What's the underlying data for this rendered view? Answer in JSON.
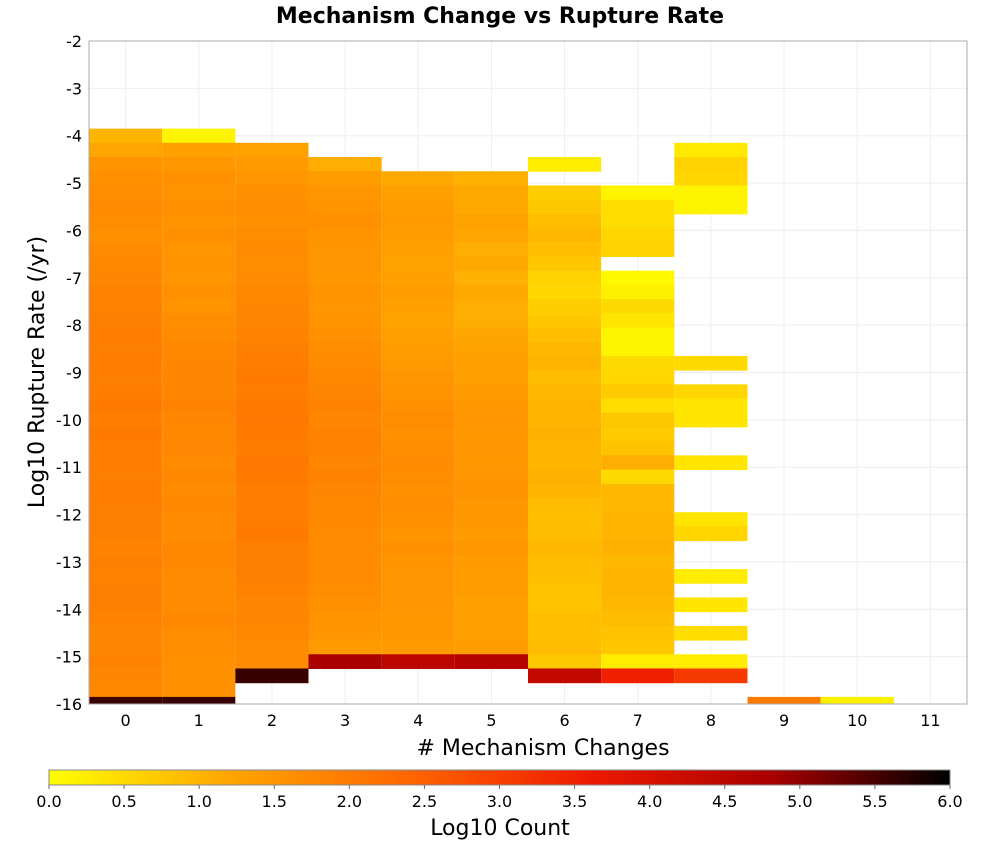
{
  "chart_data": {
    "type": "heatmap",
    "title": "Mechanism Change vs Rupture Rate",
    "xlabel": "# Mechanism Changes",
    "ylabel": "Log10 Rupture Rate (/yr)",
    "colorbar_label": "Log10 Count",
    "x_categories": [
      "0",
      "1",
      "2",
      "3",
      "4",
      "5",
      "6",
      "7",
      "8",
      "9",
      "10",
      "11"
    ],
    "ylim": [
      -16,
      -2
    ],
    "y_ticks": [
      "-2",
      "-3",
      "-4",
      "-5",
      "-6",
      "-7",
      "-8",
      "-9",
      "-10",
      "-11",
      "-12",
      "-13",
      "-14",
      "-15",
      "-16"
    ],
    "y_bin_width": 0.3,
    "colorbar_range": [
      0,
      6
    ],
    "colorbar_ticks": [
      "0.0",
      "0.5",
      "1.0",
      "1.5",
      "2.0",
      "2.5",
      "3.0",
      "3.5",
      "4.0",
      "4.5",
      "5.0",
      "5.5",
      "6.0"
    ],
    "colormap": [
      "#ffff00",
      "#ffa500",
      "#ff6600",
      "#ee1a00",
      "#aa0000",
      "#000000"
    ],
    "grid": true,
    "columns": [
      {
        "x": 0,
        "y_top": -3.85,
        "values": [
          1.0,
          1.2,
          1.55,
          1.6,
          1.65,
          1.7,
          1.65,
          1.6,
          1.7,
          1.75,
          1.8,
          1.85,
          1.85,
          1.9,
          1.95,
          1.9,
          1.95,
          1.9,
          1.95,
          2.0,
          1.95,
          2.0,
          1.9,
          1.95,
          1.9,
          1.95,
          1.9,
          1.9,
          1.9,
          1.85,
          1.9,
          1.85,
          1.9,
          1.9,
          1.85,
          1.8,
          1.8,
          1.85,
          1.8,
          1.75,
          5.6
        ]
      },
      {
        "x": 1,
        "y_top": -3.85,
        "values": [
          0.15,
          1.3,
          1.45,
          1.6,
          1.55,
          1.6,
          1.55,
          1.6,
          1.5,
          1.55,
          1.5,
          1.6,
          1.55,
          1.65,
          1.7,
          1.75,
          1.8,
          1.8,
          1.8,
          1.85,
          1.8,
          1.75,
          1.8,
          1.7,
          1.75,
          1.7,
          1.75,
          1.7,
          1.7,
          1.75,
          1.75,
          1.7,
          1.7,
          1.7,
          1.75,
          1.65,
          1.65,
          1.6,
          1.6,
          1.6,
          5.6
        ]
      },
      {
        "x": 2,
        "y_top": -4.15,
        "values": [
          1.25,
          1.4,
          1.5,
          1.6,
          1.65,
          1.6,
          1.65,
          1.7,
          1.65,
          1.7,
          1.75,
          1.8,
          1.8,
          1.85,
          1.9,
          1.95,
          2.0,
          1.95,
          2.0,
          2.05,
          2.0,
          1.95,
          2.05,
          2.0,
          1.95,
          1.95,
          1.95,
          2.0,
          1.9,
          1.9,
          1.9,
          1.85,
          1.8,
          1.8,
          1.75,
          1.7,
          1.7,
          5.6
        ]
      },
      {
        "x": 3,
        "y_top": -4.45,
        "values": [
          1.1,
          1.35,
          1.5,
          1.55,
          1.6,
          1.55,
          1.5,
          1.5,
          1.45,
          1.55,
          1.5,
          1.55,
          1.6,
          1.65,
          1.7,
          1.75,
          1.8,
          1.85,
          1.8,
          1.85,
          1.85,
          1.8,
          1.85,
          1.8,
          1.75,
          1.75,
          1.7,
          1.7,
          1.7,
          1.7,
          1.65,
          1.6,
          1.55,
          1.5,
          1.4,
          4.8
        ]
      },
      {
        "x": 4,
        "y_top": -4.75,
        "values": [
          1.15,
          1.3,
          1.35,
          1.4,
          1.35,
          1.3,
          1.25,
          1.3,
          1.35,
          1.3,
          1.25,
          1.3,
          1.35,
          1.4,
          1.5,
          1.55,
          1.6,
          1.65,
          1.6,
          1.65,
          1.7,
          1.65,
          1.6,
          1.65,
          1.6,
          1.55,
          1.6,
          1.55,
          1.5,
          1.5,
          1.5,
          1.45,
          1.45,
          1.4,
          4.5
        ]
      },
      {
        "x": 5,
        "y_top": -4.75,
        "values": [
          1.05,
          1.15,
          1.15,
          1.25,
          1.2,
          1.1,
          1.15,
          1.05,
          1.15,
          1.1,
          1.1,
          1.2,
          1.25,
          1.3,
          1.3,
          1.4,
          1.45,
          1.5,
          1.45,
          1.5,
          1.45,
          1.5,
          1.55,
          1.45,
          1.45,
          1.4,
          1.45,
          1.4,
          1.35,
          1.35,
          1.3,
          1.3,
          1.3,
          1.35,
          4.6
        ]
      },
      {
        "x": 6,
        "y_top": -4.45,
        "values": [
          0.25,
          null,
          0.65,
          0.75,
          0.85,
          0.95,
          0.85,
          0.75,
          0.6,
          0.55,
          0.65,
          0.75,
          0.85,
          0.95,
          1.0,
          0.9,
          0.95,
          1.0,
          1.0,
          1.05,
          1.0,
          1.0,
          1.05,
          1.0,
          0.9,
          0.85,
          0.9,
          0.95,
          0.9,
          0.85,
          0.8,
          0.8,
          0.85,
          0.85,
          0.9,
          0.75,
          4.4
        ]
      },
      {
        "x": 7,
        "y_top": -5.05,
        "values": [
          0.15,
          0.45,
          0.45,
          0.55,
          0.6,
          null,
          0.1,
          0.2,
          0.5,
          0.35,
          0.15,
          0.15,
          0.5,
          0.55,
          0.7,
          0.45,
          0.75,
          0.7,
          0.8,
          1.1,
          0.5,
          0.95,
          0.95,
          1.0,
          1.0,
          1.05,
          0.95,
          1.0,
          1.0,
          0.95,
          0.9,
          0.8,
          0.75,
          0.25,
          3.5
        ]
      },
      {
        "x": 8,
        "y_top": -4.15,
        "values": [
          0.3,
          0.6,
          0.55,
          0.15,
          0.15,
          null,
          null,
          null,
          null,
          null,
          null,
          null,
          null,
          null,
          null,
          0.5,
          null,
          0.55,
          0.35,
          0.35,
          null,
          null,
          0.35,
          null,
          null,
          null,
          0.35,
          0.55,
          null,
          null,
          0.25,
          null,
          0.35,
          null,
          0.45,
          null,
          0.25,
          3.1
        ]
      },
      {
        "x": 9,
        "y_top": -15.85,
        "values": [
          2.0
        ]
      },
      {
        "x": 10,
        "y_top": -15.85,
        "values": [
          0.2
        ]
      }
    ]
  }
}
